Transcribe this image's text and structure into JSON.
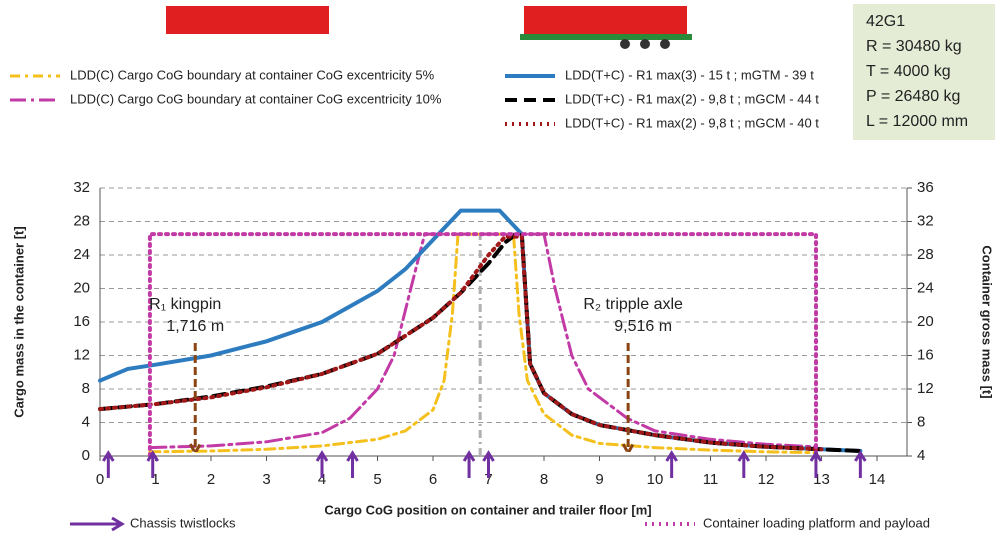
{
  "chart_data": {
    "type": "line",
    "x_label": "Cargo CoG position on container and trailer floor [m]",
    "y_label": "Cargo mass in the container [t]",
    "y2_label": "Container gross mass [t]",
    "xlim": [
      0,
      14
    ],
    "xticks": [
      0,
      1,
      2,
      3,
      4,
      5,
      6,
      7,
      8,
      9,
      10,
      11,
      12,
      13,
      14
    ],
    "ylim": [
      0,
      32
    ],
    "yticks": [
      0,
      4,
      8,
      12,
      16,
      20,
      24,
      28,
      32
    ],
    "y2lim": [
      4,
      36
    ],
    "y2ticks": [
      4,
      8,
      12,
      16,
      20,
      24,
      28,
      32,
      36
    ],
    "grid": true,
    "series": [
      {
        "name": "LDD(C) Cargo CoG boundary at container CoG excentricity 5%",
        "color": "#f5c01d",
        "style": "dashdot",
        "x": [
          0.9,
          2,
          3,
          4,
          5,
          5.5,
          6,
          6.2,
          6.35,
          6.45,
          7.45,
          7.55,
          7.7,
          8,
          8.5,
          9,
          10,
          11,
          12,
          12.9
        ],
        "values": [
          0.5,
          0.6,
          0.8,
          1.2,
          2,
          3,
          5.5,
          9,
          17,
          26.5,
          26.5,
          17,
          9,
          5,
          2.5,
          1.5,
          1,
          0.7,
          0.5,
          0.4
        ]
      },
      {
        "name": "LDD(C) Cargo CoG boundary at container CoG excentricity 10%",
        "color": "#c23aa5",
        "style": "longdash",
        "x": [
          0.9,
          2,
          3,
          4,
          4.5,
          5,
          5.3,
          5.6,
          5.85,
          8.0,
          8.2,
          8.5,
          8.8,
          9.5,
          10,
          11,
          12,
          12.9
        ],
        "values": [
          1,
          1.2,
          1.7,
          2.8,
          4.5,
          8,
          12,
          20,
          26.5,
          26.5,
          20,
          12,
          8,
          4.5,
          3,
          2,
          1.4,
          1.1
        ]
      },
      {
        "name": "LDD(T+C) - R1 max(3) - 15 t ; mGTM - 39 t",
        "color": "#2e7cc0",
        "style": "solid",
        "x": [
          0,
          0.5,
          1,
          2,
          3,
          4,
          5,
          5.5,
          6,
          6.5,
          7,
          7.2,
          7.6,
          7.75,
          8,
          8.5,
          9,
          10,
          11,
          12,
          13,
          13.7
        ],
        "values": [
          9,
          10.4,
          10.9,
          12,
          13.7,
          16,
          19.7,
          22.3,
          25.8,
          29.3,
          29.3,
          29.3,
          26.5,
          11,
          7.5,
          5,
          3.7,
          2.5,
          1.6,
          1.1,
          0.8,
          0.6
        ]
      },
      {
        "name": "LDD(T+C) - R1 max(2) - 9,8 t ; mGCM - 44 t",
        "color": "#000000",
        "style": "dash",
        "x": [
          0,
          1,
          2,
          3,
          4,
          5,
          6,
          6.5,
          7,
          7.3,
          7.5,
          7.6,
          7.75,
          8,
          8.5,
          9,
          10,
          11,
          12,
          13,
          13.7
        ],
        "values": [
          5.6,
          6.2,
          7.1,
          8.3,
          9.8,
          12.2,
          16.5,
          19.5,
          23,
          25.5,
          26.5,
          26.5,
          11,
          7.5,
          5,
          3.7,
          2.5,
          1.6,
          1.1,
          0.8,
          0.6
        ]
      },
      {
        "name": "LDD(T+C) - R1 max(2) - 9,8 t ; mGCM - 40 t",
        "color": "#a01818",
        "style": "dot",
        "x": [
          0,
          1,
          2,
          3,
          4,
          5,
          6,
          6.5,
          7,
          7.3,
          7.6,
          7.75,
          8,
          8.5,
          9,
          10,
          11,
          12,
          13
        ],
        "values": [
          5.6,
          6.2,
          7,
          8.2,
          9.8,
          12.2,
          16.5,
          19.5,
          24,
          26.2,
          26.2,
          11,
          7.5,
          5,
          3.7,
          2.5,
          1.6,
          1.1,
          0.8
        ]
      },
      {
        "name": "Container loading platform and payload",
        "color": "#c23aa5",
        "style": "dot",
        "x": [
          0.9,
          0.9,
          12.9,
          12.9
        ],
        "values": [
          0,
          26.5,
          26.5,
          0
        ]
      }
    ],
    "center_line": {
      "x": 6.85,
      "color": "#b0b0b0"
    },
    "twistlocks": {
      "name": "Chassis twistlocks",
      "color": "#7030a0",
      "x": [
        0.15,
        0.95,
        4.0,
        4.55,
        6.65,
        7.0,
        10.3,
        11.6,
        12.9,
        13.7
      ]
    },
    "annotations": [
      {
        "lines": [
          "R₁ kingpin",
          "1,716 m"
        ],
        "x": 1.716,
        "y": 13.5,
        "color": "#8b4513"
      },
      {
        "lines": [
          "R₂ tripple axle",
          "9,516 m"
        ],
        "x": 9.516,
        "y": 13.5,
        "color": "#8b4513"
      }
    ],
    "info_box": [
      "42G1",
      "R = 30480 kg",
      "T = 4000 kg",
      "P = 26480 kg",
      "L = 12000 mm"
    ]
  }
}
